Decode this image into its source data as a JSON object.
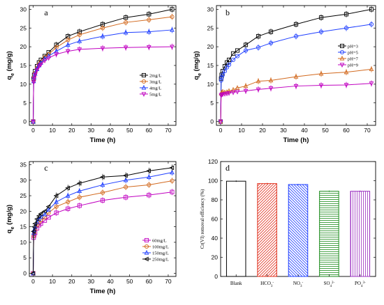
{
  "chart_data": [
    {
      "type": "line",
      "panel_label": "a",
      "xlabel": "Time (h)",
      "ylabel": "q",
      "ylabel_sub": "e",
      "ylabel_unit": " (mg/g)",
      "xlim": [
        -2,
        74
      ],
      "ylim": [
        -1,
        31
      ],
      "xticks": [
        0,
        10,
        20,
        30,
        40,
        50,
        60,
        70
      ],
      "yticks": [
        0,
        5,
        10,
        15,
        20,
        25,
        30
      ],
      "legend_position": "right",
      "x": [
        0,
        0.25,
        0.5,
        1,
        2,
        3,
        4,
        6,
        8,
        12,
        18,
        24,
        36,
        48,
        60,
        72
      ],
      "series": [
        {
          "name": "2mg/L",
          "marker": "square",
          "color": "#000000",
          "values": [
            0,
            11.5,
            12.5,
            13.5,
            14.8,
            15.8,
            16.5,
            17.5,
            18.5,
            20.5,
            22.8,
            24.0,
            26.0,
            27.8,
            28.7,
            30.0
          ]
        },
        {
          "name": "3mg/L",
          "marker": "circle",
          "color": "#d2691e",
          "values": [
            0,
            11.0,
            12.0,
            13.0,
            14.3,
            15.3,
            16.0,
            17.2,
            18.0,
            19.8,
            21.8,
            23.2,
            25.0,
            26.5,
            27.2,
            28.0
          ]
        },
        {
          "name": "4mg/L",
          "marker": "triangle",
          "color": "#1f3fff",
          "values": [
            0,
            10.8,
            11.8,
            12.8,
            14.0,
            15.0,
            15.7,
            16.8,
            17.5,
            18.8,
            20.5,
            21.5,
            22.8,
            23.8,
            24.0,
            24.5
          ]
        },
        {
          "name": "5mg/L",
          "marker": "triangle-down",
          "color": "#c000c0",
          "values": [
            0,
            10.5,
            11.5,
            12.5,
            13.8,
            14.8,
            15.3,
            16.3,
            17.0,
            18.0,
            18.8,
            19.3,
            19.6,
            19.8,
            19.9,
            20.0
          ]
        }
      ]
    },
    {
      "type": "line",
      "panel_label": "b",
      "xlabel": "Time (h)",
      "ylabel": "q",
      "ylabel_sub": "e",
      "ylabel_unit": " (mg/g)",
      "xlim": [
        -2,
        74
      ],
      "ylim": [
        -1,
        31
      ],
      "xticks": [
        0,
        10,
        20,
        30,
        40,
        50,
        60,
        70
      ],
      "yticks": [
        0,
        5,
        10,
        15,
        20,
        25,
        30
      ],
      "legend_position": "right",
      "x": [
        0,
        0.25,
        0.5,
        1,
        2,
        3,
        4,
        6,
        8,
        12,
        18,
        24,
        36,
        48,
        60,
        72
      ],
      "series": [
        {
          "name": "pH=3",
          "marker": "square",
          "color": "#000000",
          "values": [
            0,
            11.5,
            12.5,
            13.5,
            14.8,
            15.8,
            16.5,
            18.2,
            19.0,
            20.5,
            22.8,
            24.0,
            26.0,
            27.8,
            28.7,
            30.0
          ]
        },
        {
          "name": "pH=5",
          "marker": "circle",
          "color": "#1f3fff",
          "values": [
            0,
            11.0,
            11.8,
            12.5,
            13.5,
            14.5,
            15.2,
            16.5,
            17.5,
            19.0,
            19.8,
            21.0,
            22.8,
            24.0,
            25.0,
            26.0
          ]
        },
        {
          "name": "pH=7",
          "marker": "triangle",
          "color": "#d2691e",
          "values": [
            0,
            7.5,
            7.8,
            8.0,
            7.8,
            7.9,
            8.2,
            8.5,
            9.0,
            9.5,
            10.8,
            11.0,
            12.0,
            12.8,
            13.2,
            14.0
          ]
        },
        {
          "name": "pH=9",
          "marker": "triangle-down",
          "color": "#c000c0",
          "values": [
            0,
            7.0,
            7.2,
            7.3,
            7.4,
            7.5,
            7.6,
            7.8,
            8.0,
            8.2,
            8.6,
            8.9,
            9.5,
            9.7,
            9.8,
            10.2
          ]
        }
      ]
    },
    {
      "type": "line",
      "panel_label": "c",
      "xlabel": "Time (h)",
      "ylabel": "q",
      "ylabel_sub": "e",
      "ylabel_unit": " (mg/g)",
      "xlim": [
        -2,
        74
      ],
      "ylim": [
        -1,
        36
      ],
      "xticks": [
        0,
        10,
        20,
        30,
        40,
        50,
        60,
        70
      ],
      "yticks": [
        0,
        5,
        10,
        15,
        20,
        25,
        30,
        35
      ],
      "legend_position": "bottom-right",
      "x": [
        0,
        0.25,
        0.5,
        1,
        2,
        3,
        4,
        6,
        8,
        12,
        18,
        24,
        36,
        48,
        60,
        72
      ],
      "series": [
        {
          "name": "60mg/L",
          "marker": "square",
          "color": "#c000c0",
          "values": [
            0,
            11.5,
            12.2,
            13.0,
            14.5,
            15.5,
            16.0,
            17.0,
            18.0,
            19.5,
            20.8,
            21.8,
            23.5,
            24.5,
            25.2,
            26.2
          ]
        },
        {
          "name": "100mg/L",
          "marker": "circle",
          "color": "#d2691e",
          "values": [
            0,
            12.0,
            13.0,
            14.0,
            15.5,
            16.5,
            17.2,
            18.0,
            19.5,
            21.5,
            23.0,
            24.5,
            26.0,
            27.8,
            28.5,
            29.8
          ]
        },
        {
          "name": "150mg/L",
          "marker": "triangle",
          "color": "#1f3fff",
          "values": [
            0,
            13.0,
            14.0,
            15.0,
            16.5,
            17.5,
            18.2,
            19.0,
            20.5,
            23.0,
            25.0,
            26.5,
            28.5,
            30.0,
            31.0,
            32.5
          ]
        },
        {
          "name": "250mg/L",
          "marker": "triangle-left",
          "color": "#000000",
          "values": [
            0,
            13.5,
            15.0,
            16.0,
            17.5,
            18.5,
            19.2,
            20.0,
            21.5,
            25.0,
            27.5,
            29.0,
            31.0,
            31.5,
            33.0,
            34.0
          ]
        }
      ]
    },
    {
      "type": "bar",
      "panel_label": "d",
      "xlabel": "",
      "ylabel": "Cr(VI) removal efficiency (%)",
      "ylim": [
        0,
        120
      ],
      "yticks": [
        0,
        20,
        40,
        60,
        80,
        100,
        120
      ],
      "categories": [
        "Blank",
        "HCO3-",
        "NO3-",
        "SO42-",
        "PO43-"
      ],
      "category_labels": [
        {
          "main": "Blank",
          "sub": "",
          "sup": ""
        },
        {
          "main": "HCO",
          "sub": "3",
          "sup": "-"
        },
        {
          "main": "NO",
          "sub": "3",
          "sup": "-"
        },
        {
          "main": "SO",
          "sub": "4",
          "sup": "2-"
        },
        {
          "main": "PO",
          "sub": "4",
          "sup": "3-"
        }
      ],
      "values": [
        99.5,
        97.0,
        96.0,
        89.0,
        89.0
      ],
      "colors": [
        "#000000",
        "#e0301e",
        "#1f3fff",
        "#1a8a1a",
        "#9b30c0"
      ],
      "patterns": [
        "none",
        "diag-right",
        "diag-left",
        "horizontal",
        "vertical"
      ]
    }
  ]
}
